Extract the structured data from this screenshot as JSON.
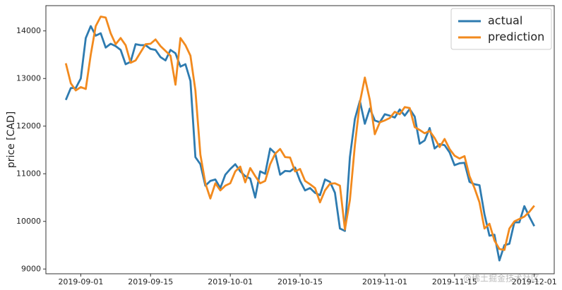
{
  "chart_data": {
    "type": "line",
    "ylabel": "price [CAD]",
    "watermark": "@稀土掘金技术社区",
    "legend": "upper right",
    "x": [
      "2019-08-29",
      "2019-08-30",
      "2019-08-31",
      "2019-09-01",
      "2019-09-02",
      "2019-09-03",
      "2019-09-04",
      "2019-09-05",
      "2019-09-06",
      "2019-09-07",
      "2019-09-08",
      "2019-09-09",
      "2019-09-10",
      "2019-09-11",
      "2019-09-12",
      "2019-09-13",
      "2019-09-14",
      "2019-09-15",
      "2019-09-16",
      "2019-09-17",
      "2019-09-18",
      "2019-09-19",
      "2019-09-20",
      "2019-09-21",
      "2019-09-22",
      "2019-09-23",
      "2019-09-24",
      "2019-09-25",
      "2019-09-26",
      "2019-09-27",
      "2019-09-28",
      "2019-09-29",
      "2019-09-30",
      "2019-10-01",
      "2019-10-02",
      "2019-10-03",
      "2019-10-04",
      "2019-10-05",
      "2019-10-06",
      "2019-10-07",
      "2019-10-08",
      "2019-10-09",
      "2019-10-10",
      "2019-10-11",
      "2019-10-12",
      "2019-10-13",
      "2019-10-14",
      "2019-10-15",
      "2019-10-16",
      "2019-10-17",
      "2019-10-18",
      "2019-10-19",
      "2019-10-20",
      "2019-10-21",
      "2019-10-22",
      "2019-10-23",
      "2019-10-24",
      "2019-10-25",
      "2019-10-26",
      "2019-10-27",
      "2019-10-28",
      "2019-10-29",
      "2019-10-30",
      "2019-10-31",
      "2019-11-01",
      "2019-11-02",
      "2019-11-03",
      "2019-11-04",
      "2019-11-05",
      "2019-11-06",
      "2019-11-07",
      "2019-11-08",
      "2019-11-09",
      "2019-11-10",
      "2019-11-11",
      "2019-11-12",
      "2019-11-13",
      "2019-11-14",
      "2019-11-15",
      "2019-11-16",
      "2019-11-17",
      "2019-11-18",
      "2019-11-19",
      "2019-11-20",
      "2019-11-21",
      "2019-11-22",
      "2019-11-23",
      "2019-11-24",
      "2019-11-25",
      "2019-11-26",
      "2019-11-27",
      "2019-11-28",
      "2019-11-29",
      "2019-11-30",
      "2019-12-01"
    ],
    "series": [
      {
        "name": "actual",
        "color": "#2e7bb0",
        "values": [
          12550,
          12800,
          12800,
          13000,
          13850,
          14100,
          13900,
          13950,
          13650,
          13730,
          13680,
          13600,
          13300,
          13350,
          13720,
          13700,
          13700,
          13620,
          13600,
          13450,
          13380,
          13600,
          13530,
          13250,
          13300,
          12950,
          11350,
          11200,
          10750,
          10850,
          10880,
          10700,
          10980,
          11100,
          11200,
          11050,
          10950,
          10900,
          10500,
          11050,
          11000,
          11530,
          11430,
          10980,
          11060,
          11050,
          11130,
          10850,
          10650,
          10700,
          10600,
          10550,
          10880,
          10830,
          10600,
          9850,
          9800,
          11350,
          12150,
          12530,
          12050,
          12370,
          12120,
          12080,
          12250,
          12220,
          12180,
          12350,
          12220,
          12360,
          12200,
          11630,
          11700,
          11960,
          11530,
          11620,
          11600,
          11450,
          11180,
          11220,
          11230,
          10830,
          10780,
          10760,
          10150,
          9700,
          9720,
          9180,
          9500,
          9530,
          9980,
          9980,
          10320,
          10100,
          9900
        ]
      },
      {
        "name": "prediction",
        "color": "#f28a1e",
        "values": [
          13320,
          12900,
          12750,
          12820,
          12780,
          13500,
          14100,
          14300,
          14280,
          13950,
          13720,
          13850,
          13700,
          13330,
          13380,
          13550,
          13720,
          13730,
          13820,
          13680,
          13580,
          13480,
          12870,
          13850,
          13700,
          13480,
          12750,
          11400,
          10800,
          10480,
          10800,
          10650,
          10750,
          10800,
          11050,
          11150,
          10820,
          11120,
          10950,
          10800,
          10850,
          11200,
          11420,
          11520,
          11350,
          11340,
          11050,
          11100,
          10850,
          10780,
          10700,
          10400,
          10650,
          10790,
          10800,
          10750,
          9830,
          10450,
          11600,
          12500,
          13020,
          12550,
          11830,
          12080,
          12120,
          12170,
          12300,
          12250,
          12400,
          12380,
          11980,
          11920,
          11850,
          11900,
          11750,
          11560,
          11730,
          11520,
          11380,
          11320,
          11370,
          10950,
          10700,
          10400,
          9850,
          9950,
          9600,
          9420,
          9400,
          9850,
          10000,
          10050,
          10100,
          10200,
          10330
        ]
      }
    ],
    "xlim": [
      "2019-08-25",
      "2019-12-05"
    ],
    "xticks": [
      "2019-09-01",
      "2019-09-15",
      "2019-10-01",
      "2019-10-15",
      "2019-11-01",
      "2019-11-15",
      "2019-12-01"
    ],
    "ylim": [
      8900,
      14530
    ],
    "yticks": [
      9000,
      10000,
      11000,
      12000,
      13000,
      14000
    ]
  }
}
